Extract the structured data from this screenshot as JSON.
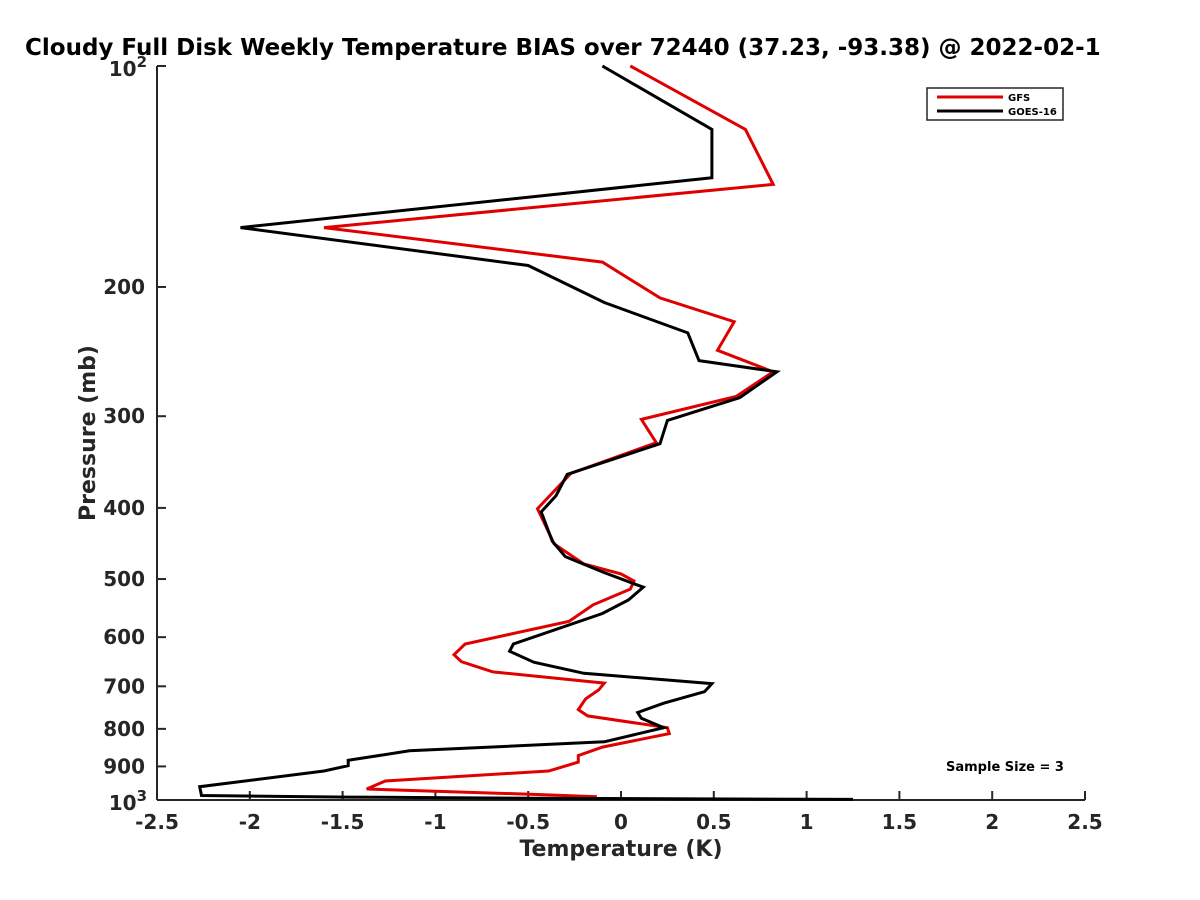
{
  "chart_data": {
    "type": "line",
    "title": "Cloudy Full Disk Weekly Temperature BIAS over 72440 (37.23, -93.38) @ 2022-02-1",
    "xlabel": "Temperature (K)",
    "ylabel": "Pressure (mb)",
    "xlim": [
      -2.5,
      2.5
    ],
    "ylim": [
      1000,
      100
    ],
    "y_scale": "log",
    "grid": false,
    "legend_position": "top-right",
    "x_ticks": [
      {
        "value": -2.5,
        "label": "-2.5"
      },
      {
        "value": -2,
        "label": "-2"
      },
      {
        "value": -1.5,
        "label": "-1.5"
      },
      {
        "value": -1,
        "label": "-1"
      },
      {
        "value": -0.5,
        "label": "-0.5"
      },
      {
        "value": 0,
        "label": "0"
      },
      {
        "value": 0.5,
        "label": "0.5"
      },
      {
        "value": 1,
        "label": "1"
      },
      {
        "value": 1.5,
        "label": "1.5"
      },
      {
        "value": 2,
        "label": "2"
      },
      {
        "value": 2.5,
        "label": "2.5"
      }
    ],
    "y_ticks": [
      {
        "value": 100,
        "label": "10",
        "sup": "2"
      },
      {
        "value": 200,
        "label": "200",
        "sup": ""
      },
      {
        "value": 300,
        "label": "300",
        "sup": ""
      },
      {
        "value": 400,
        "label": "400",
        "sup": ""
      },
      {
        "value": 500,
        "label": "500",
        "sup": ""
      },
      {
        "value": 600,
        "label": "600",
        "sup": ""
      },
      {
        "value": 700,
        "label": "700",
        "sup": ""
      },
      {
        "value": 800,
        "label": "800",
        "sup": ""
      },
      {
        "value": 900,
        "label": "900",
        "sup": ""
      },
      {
        "value": 1000,
        "label": "10",
        "sup": "3"
      }
    ],
    "series": [
      {
        "name": "GFS",
        "color": "#e00000",
        "points": [
          [
            0.05,
            100
          ],
          [
            0.67,
            122
          ],
          [
            0.82,
            145
          ],
          [
            -1.6,
            166
          ],
          [
            -0.1,
            185
          ],
          [
            0.21,
            207
          ],
          [
            0.61,
            223
          ],
          [
            0.52,
            244
          ],
          [
            0.82,
            261
          ],
          [
            0.62,
            282
          ],
          [
            0.11,
            303
          ],
          [
            0.19,
            326
          ],
          [
            -0.27,
            359
          ],
          [
            -0.45,
            401
          ],
          [
            -0.36,
            448
          ],
          [
            -0.2,
            477
          ],
          [
            0.0,
            492
          ],
          [
            0.07,
            503
          ],
          [
            0.05,
            516
          ],
          [
            -0.15,
            542
          ],
          [
            -0.28,
            571
          ],
          [
            -0.84,
            613
          ],
          [
            -0.9,
            634
          ],
          [
            -0.86,
            648
          ],
          [
            -0.69,
            669
          ],
          [
            -0.09,
            693
          ],
          [
            -0.12,
            708
          ],
          [
            -0.19,
            728
          ],
          [
            -0.23,
            753
          ],
          [
            -0.18,
            768
          ],
          [
            0.25,
            797
          ],
          [
            0.26,
            812
          ],
          [
            -0.1,
            847
          ],
          [
            -0.23,
            870
          ],
          [
            -0.23,
            888
          ],
          [
            -0.39,
            913
          ],
          [
            -1.27,
            942
          ],
          [
            -1.37,
            966
          ],
          [
            -0.45,
            983
          ],
          [
            -0.13,
            990
          ]
        ]
      },
      {
        "name": "GOES-16",
        "color": "#000000",
        "points": [
          [
            -0.1,
            100
          ],
          [
            0.49,
            122
          ],
          [
            0.49,
            142
          ],
          [
            -2.05,
            166
          ],
          [
            -0.5,
            187
          ],
          [
            -0.09,
            210
          ],
          [
            0.36,
            231
          ],
          [
            0.42,
            252
          ],
          [
            0.84,
            261
          ],
          [
            0.64,
            283
          ],
          [
            0.25,
            304
          ],
          [
            0.21,
            327
          ],
          [
            -0.29,
            360
          ],
          [
            -0.35,
            385
          ],
          [
            -0.43,
            405
          ],
          [
            -0.37,
            444
          ],
          [
            -0.3,
            466
          ],
          [
            -0.09,
            490
          ],
          [
            0.12,
            513
          ],
          [
            0.04,
            534
          ],
          [
            -0.1,
            557
          ],
          [
            -0.58,
            613
          ],
          [
            -0.6,
            627
          ],
          [
            -0.47,
            649
          ],
          [
            -0.2,
            672
          ],
          [
            0.49,
            694
          ],
          [
            0.45,
            712
          ],
          [
            0.23,
            738
          ],
          [
            0.09,
            760
          ],
          [
            0.11,
            774
          ],
          [
            0.23,
            797
          ],
          [
            -0.09,
            833
          ],
          [
            -1.14,
            857
          ],
          [
            -1.47,
            883
          ],
          [
            -1.47,
            898
          ],
          [
            -1.6,
            913
          ],
          [
            -2.27,
            959
          ],
          [
            -2.26,
            986
          ],
          [
            -1.47,
            991
          ],
          [
            -0.33,
            995
          ],
          [
            1.25,
            998
          ]
        ]
      }
    ],
    "annotations": [
      {
        "text": "Sample Size = 3"
      }
    ]
  }
}
